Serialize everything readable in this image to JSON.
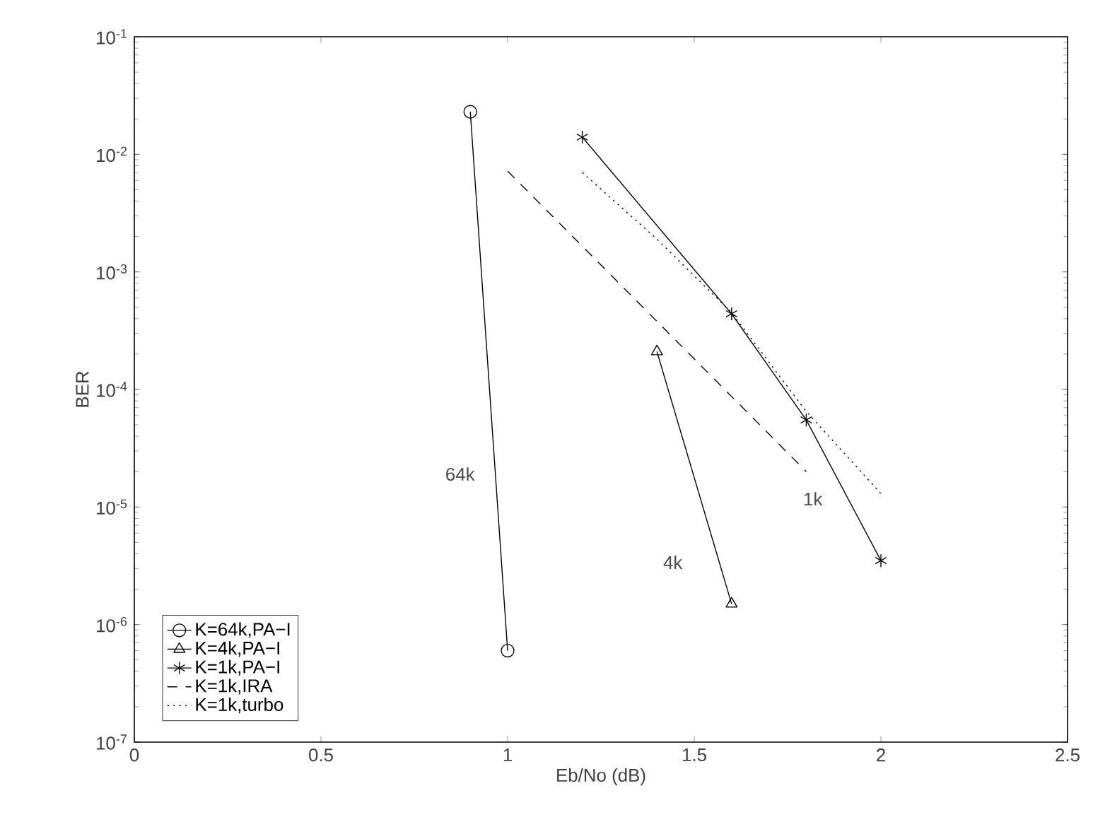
{
  "chart_data": {
    "type": "line",
    "xlabel": "Eb/No (dB)",
    "ylabel": "BER",
    "log": "y",
    "xlim": [
      0,
      2.5
    ],
    "xticks": [
      0,
      0.5,
      1,
      1.5,
      2,
      2.5
    ],
    "ylim": [
      1e-07,
      0.1
    ],
    "yticks": [
      {
        "value": 1e-07,
        "label": "10$^{-7}$"
      },
      {
        "value": 1e-06,
        "label": "10$^{-6}$"
      },
      {
        "value": 1e-05,
        "label": "10$^{-5}$"
      },
      {
        "value": 0.0001,
        "label": "10$^{-4}$"
      },
      {
        "value": 0.001,
        "label": "10$^{-3}$"
      },
      {
        "value": 0.01,
        "label": "10$^{-2}$"
      },
      {
        "value": 0.1,
        "label": "10$^{-1}$"
      }
    ],
    "grid": false,
    "legend": "bottom left",
    "series": [
      {
        "name": "K=64k,PA−I",
        "color": "#000000",
        "marker": "circle",
        "line_style": "solid",
        "x": [
          0.9,
          1.0
        ],
        "values": [
          0.023,
          6e-07
        ]
      },
      {
        "name": "K=4k,PA−I",
        "color": "#000000",
        "marker": "triangle",
        "line_style": "solid",
        "x": [
          1.4,
          1.6
        ],
        "values": [
          0.00021,
          1.5e-06
        ]
      },
      {
        "name": "K=1k,PA−I",
        "color": "#000000",
        "marker": "cross",
        "line_style": "solid",
        "x": [
          1.2,
          1.6,
          1.8,
          2.0
        ],
        "values": [
          0.014,
          0.00044,
          5.5e-05,
          3.5e-06
        ]
      },
      {
        "name": "K=1k,IRA",
        "color": "#000000",
        "marker": "none",
        "line_style": "dashed",
        "x": [
          1.0,
          1.8
        ],
        "values": [
          0.0072,
          2e-05
        ]
      },
      {
        "name": "K=1k,turbo",
        "color": "#000000",
        "marker": "none",
        "line_style": "dotted",
        "x": [
          1.2,
          1.4,
          1.6,
          1.8,
          2.0
        ],
        "values": [
          0.007,
          0.0019,
          0.00045,
          6.5e-05,
          1.3e-05
        ]
      }
    ],
    "annotations": [
      "64k",
      "4k",
      "1k"
    ]
  }
}
